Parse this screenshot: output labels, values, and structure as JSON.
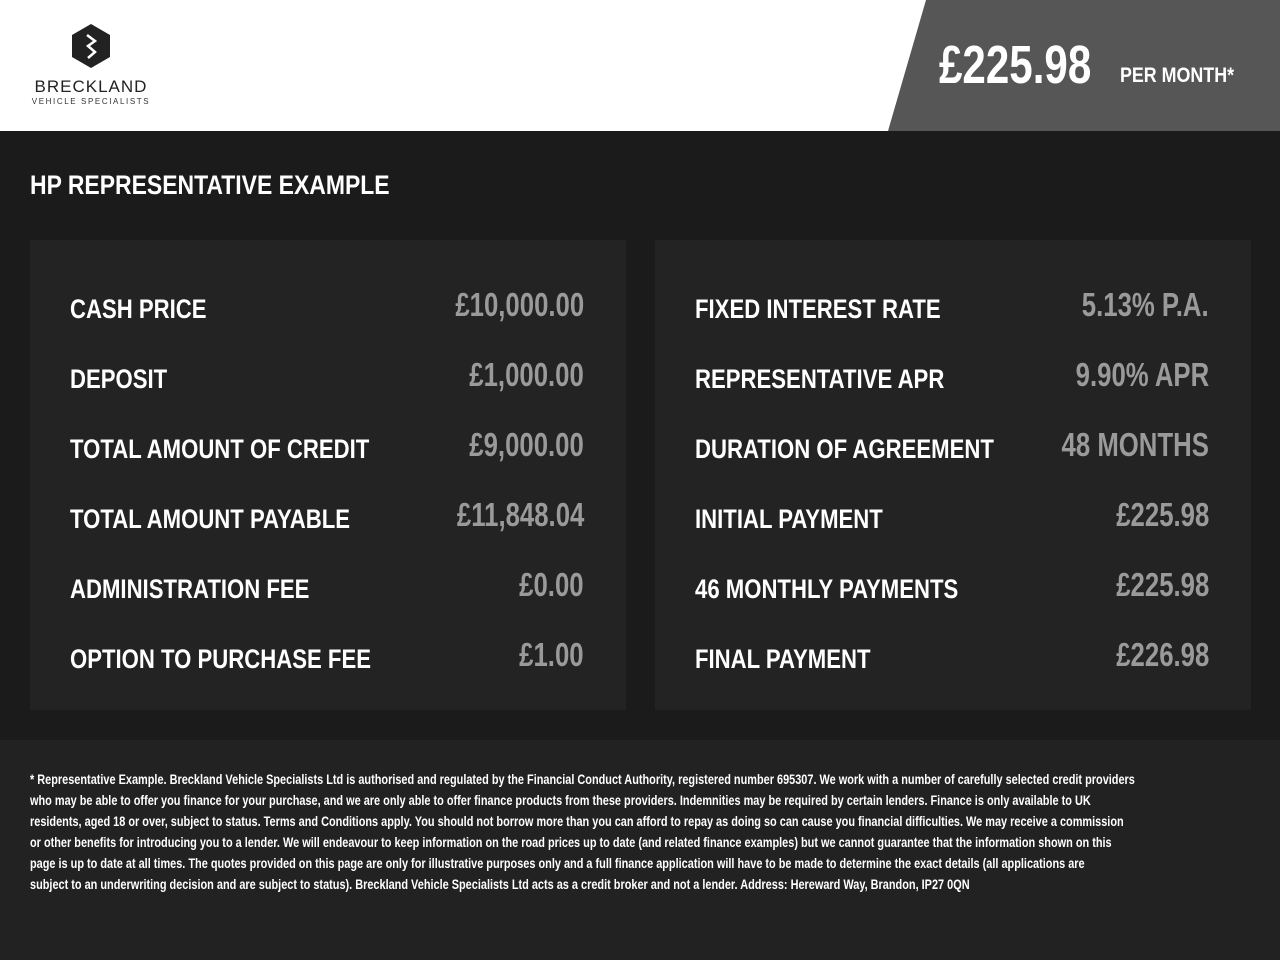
{
  "header": {
    "brand": "BRECKLAND",
    "brand_sub": "VEHICLE SPECIALISTS",
    "monthly_price": "£225.98",
    "per_month": "PER MONTH*"
  },
  "title": "HP REPRESENTATIVE EXAMPLE",
  "left": [
    {
      "label": "CASH PRICE",
      "value": "£10,000.00"
    },
    {
      "label": "DEPOSIT",
      "value": "£1,000.00"
    },
    {
      "label": "TOTAL AMOUNT OF CREDIT",
      "value": "£9,000.00"
    },
    {
      "label": "TOTAL AMOUNT PAYABLE",
      "value": "£11,848.04"
    },
    {
      "label": "ADMINISTRATION FEE",
      "value": "£0.00"
    },
    {
      "label": "OPTION TO PURCHASE FEE",
      "value": "£1.00"
    }
  ],
  "right": [
    {
      "label": "FIXED INTEREST RATE",
      "value": "5.13% P.A."
    },
    {
      "label": "REPRESENTATIVE APR",
      "value": "9.90% APR"
    },
    {
      "label": "DURATION OF AGREEMENT",
      "value": "48 MONTHS"
    },
    {
      "label": "INITIAL PAYMENT",
      "value": "£225.98"
    },
    {
      "label": "46 MONTHLY PAYMENTS",
      "value": "£225.98"
    },
    {
      "label": "FINAL PAYMENT",
      "value": "£226.98"
    }
  ],
  "disclaimer": [
    "* Representative Example. Breckland Vehicle Specialists Ltd is authorised and regulated by the Financial Conduct Authority, registered number 695307. We work with a number of carefully selected credit providers",
    "who may be able to offer you finance for your purchase, and we are only able to offer finance products from these providers. Indemnities may be required by certain lenders. Finance is only available to UK",
    "residents, aged 18 or over, subject to status. Terms and Conditions apply. You should not borrow more than you can afford to repay as doing so can cause you financial difficulties. We may receive a commission",
    "or other benefits for introducing you to a lender. We will endeavour to keep information on the road prices up to date (and related finance examples) but we cannot guarantee that the information shown on this",
    "page is up to date at all times. The quotes provided on this page are only for illustrative purposes only and a full finance application will have to be made to determine the exact details (all applications are",
    "subject to an underwriting decision and are subject to status). Breckland Vehicle Specialists Ltd acts as a credit broker and not a lender. Address: Hereward Way, Brandon, IP27 0QN"
  ]
}
